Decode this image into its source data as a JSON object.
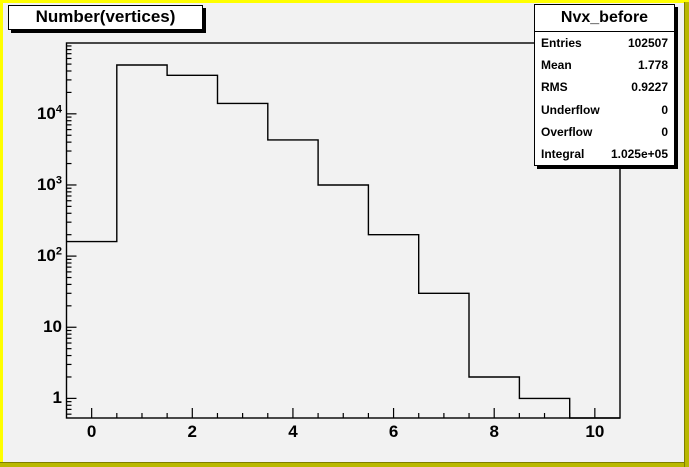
{
  "canvas": {
    "bg_color": "#f2f2f2",
    "border_light_color": "#ffff00",
    "border_dark_color": "#b9b800",
    "line_color": "#000000"
  },
  "title_pave": {
    "text": "Number(vertices)"
  },
  "stats_pave": {
    "title": "Nvx_before",
    "rows": [
      {
        "label": "Entries",
        "value": "102507"
      },
      {
        "label": "Mean",
        "value": "1.778"
      },
      {
        "label": "RMS",
        "value": "0.9227"
      },
      {
        "label": "Underflow",
        "value": "0"
      },
      {
        "label": "Overflow",
        "value": "0"
      },
      {
        "label": "Integral",
        "value": "1.025e+05"
      }
    ]
  },
  "chart_data": {
    "type": "bar",
    "subtype": "root-step-histogram",
    "title": "Number(vertices)",
    "histogram_name": "Nvx_before",
    "x_bin_centers": [
      0,
      1,
      2,
      3,
      4,
      5,
      6,
      7,
      8,
      9
    ],
    "bin_width": 1,
    "values": [
      160,
      48600,
      34800,
      14000,
      4300,
      1000,
      200,
      30,
      2,
      1
    ],
    "xlabel": "",
    "ylabel": "",
    "xlim": [
      -0.5,
      10.5
    ],
    "ylim": [
      0.53,
      99000
    ],
    "ylog": true,
    "grid": false,
    "legend": "none",
    "xticks": [
      0,
      2,
      4,
      6,
      8,
      10
    ],
    "x_minor_tick_step": 0.5,
    "yticks": [
      {
        "v": 1,
        "base": "1",
        "exp": ""
      },
      {
        "v": 10,
        "base": "10",
        "exp": ""
      },
      {
        "v": 100,
        "base": "10",
        "exp": "2"
      },
      {
        "v": 1000,
        "base": "10",
        "exp": "3"
      },
      {
        "v": 10000,
        "base": "10",
        "exp": "4"
      }
    ],
    "line_color": "#000000"
  }
}
